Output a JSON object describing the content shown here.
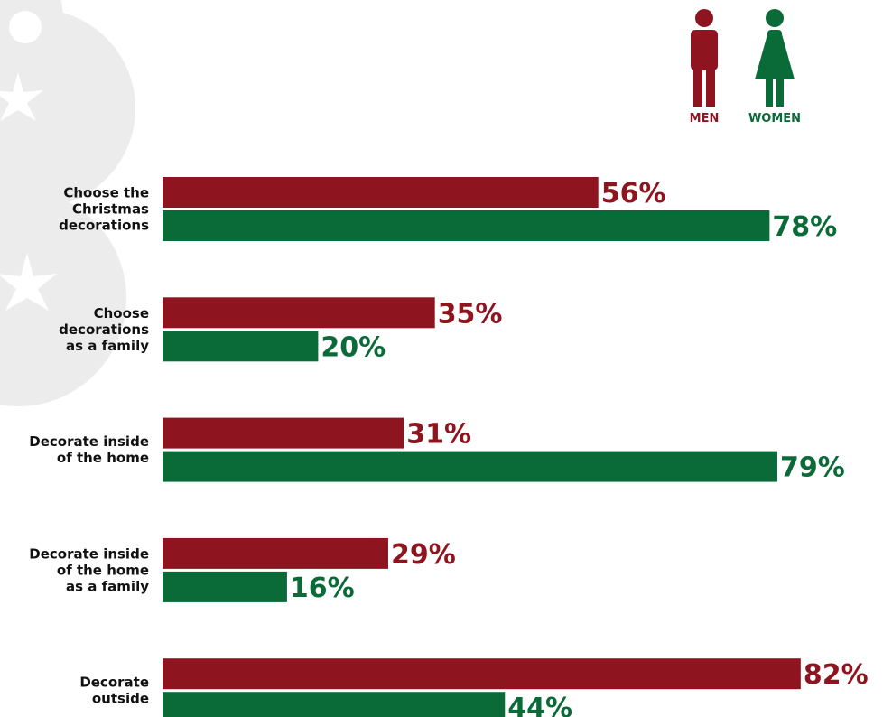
{
  "chart_data": {
    "type": "bar",
    "orientation": "horizontal",
    "categories": [
      [
        "Choose the",
        "Christmas",
        "decorations"
      ],
      [
        "Choose",
        "decorations",
        "as a family"
      ],
      [
        "Decorate inside",
        "of the home"
      ],
      [
        "Decorate inside",
        "of the home",
        "as a family"
      ],
      [
        "Decorate",
        "outside"
      ]
    ],
    "series": [
      {
        "name": "MEN",
        "color": "#8e1520",
        "values": [
          56,
          35,
          31,
          29,
          82
        ],
        "value_labels": [
          "56%",
          "35%",
          "31%",
          "29%",
          "82%"
        ]
      },
      {
        "name": "WOMEN",
        "color": "#0a6b38",
        "values": [
          78,
          20,
          79,
          16,
          44
        ],
        "value_labels": [
          "78%",
          "20%",
          "79%",
          "16%",
          "44%"
        ]
      }
    ]
  }
}
